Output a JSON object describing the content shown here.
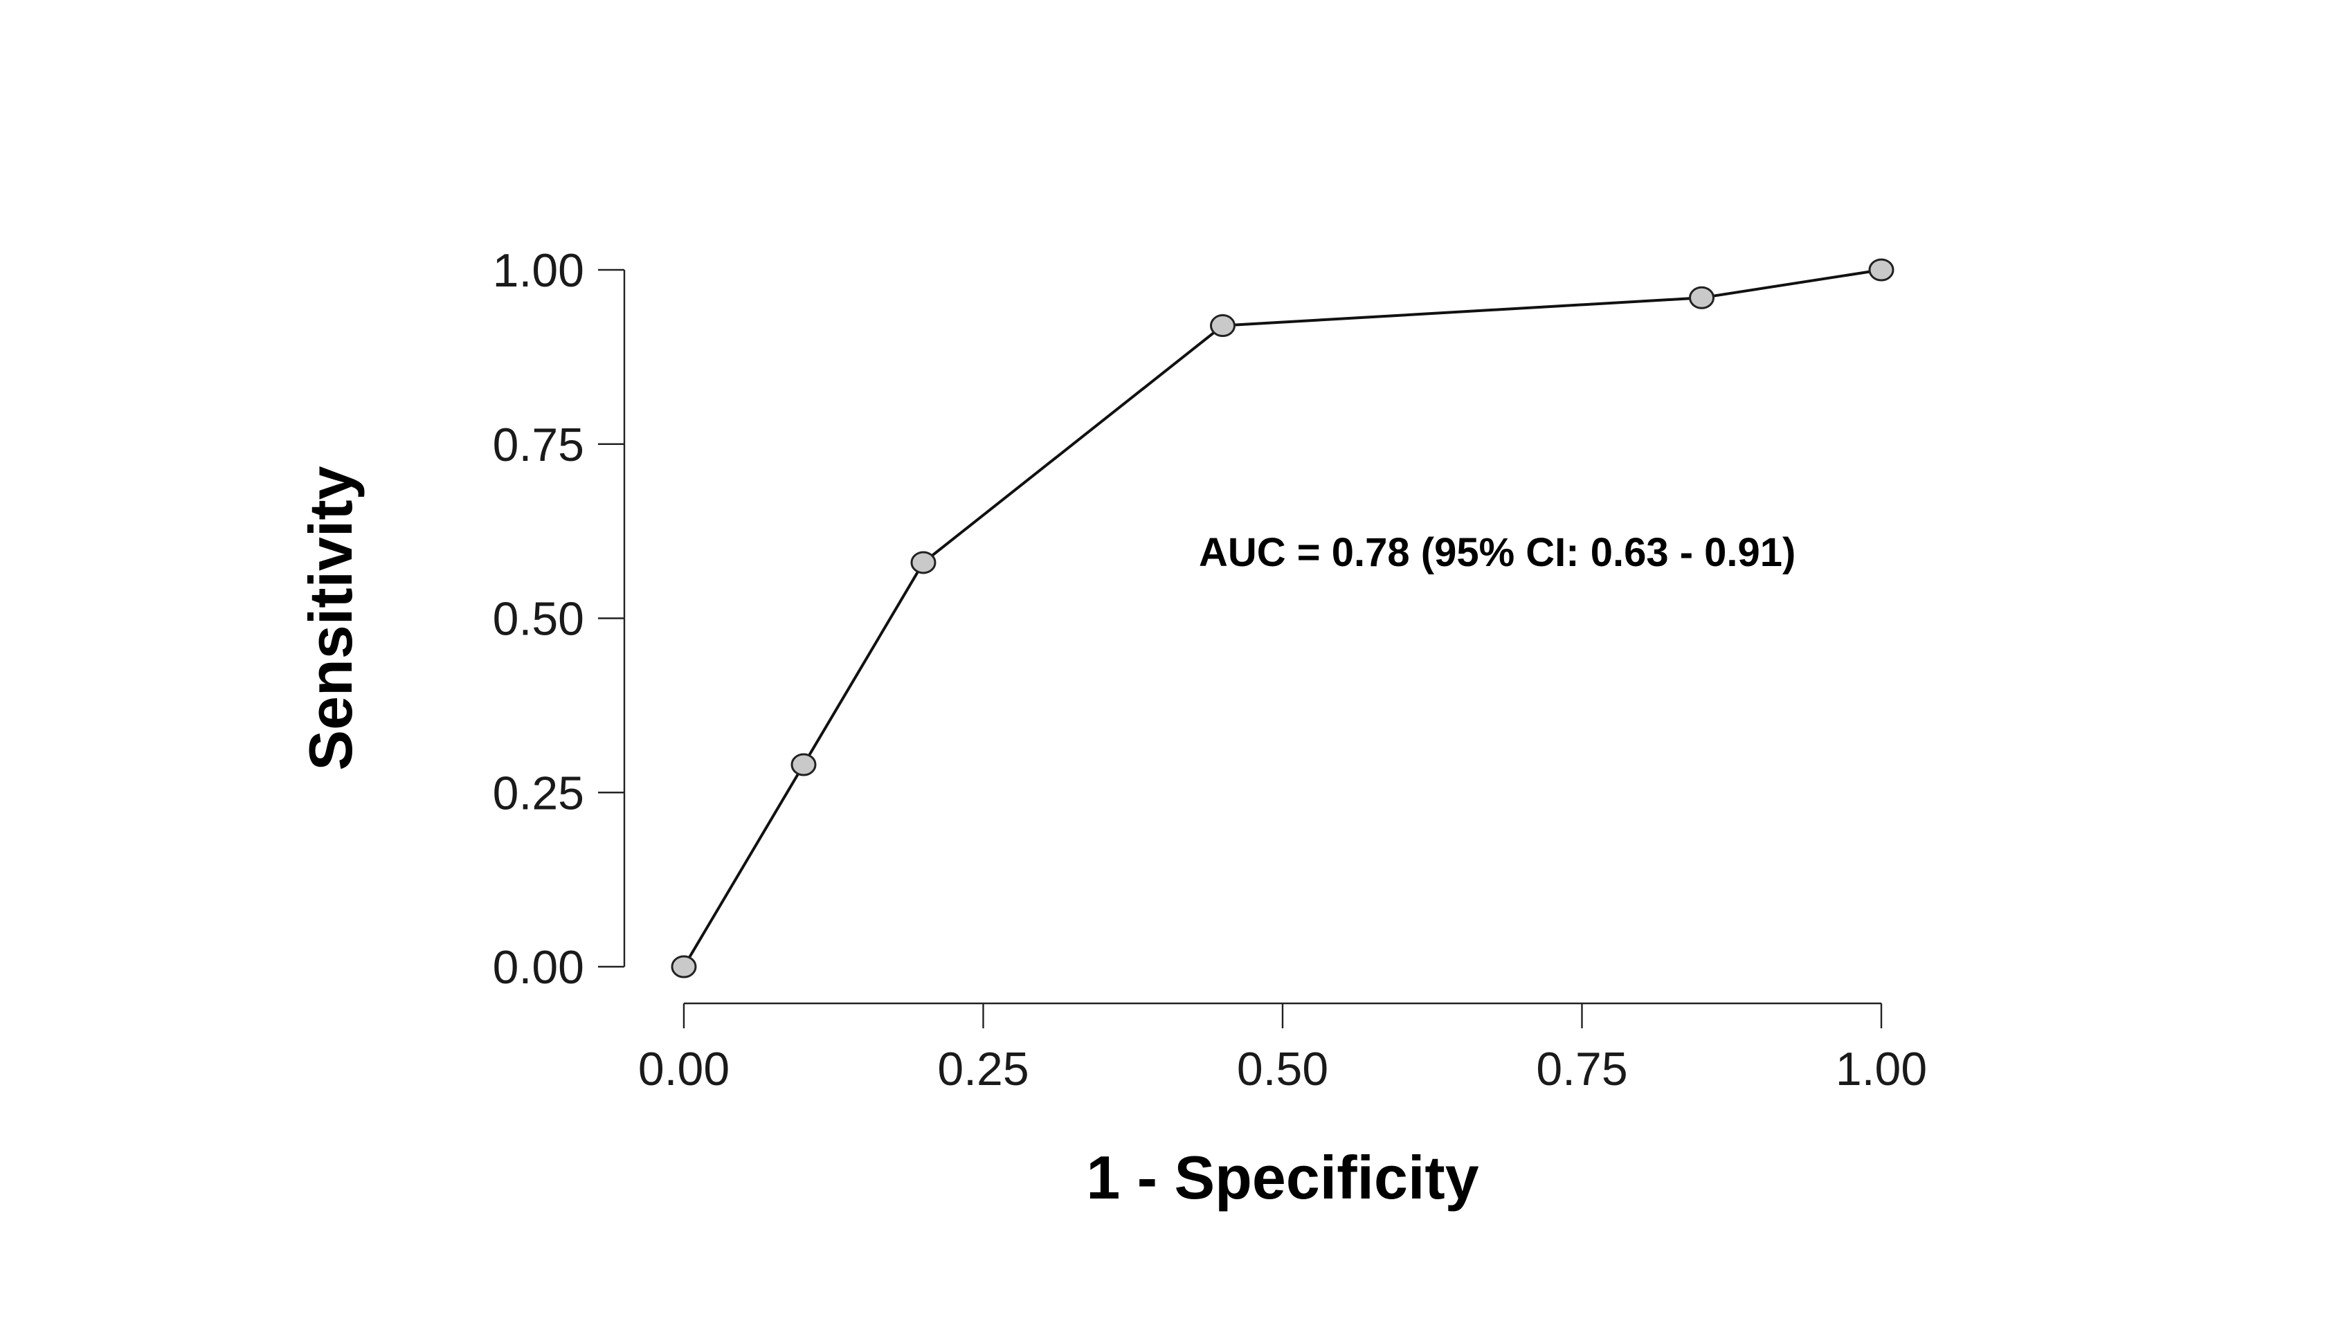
{
  "chart_data": {
    "type": "line",
    "title": "",
    "xlabel": "1 - Specificity",
    "ylabel": "Sensitivity",
    "xlim": [
      0,
      1
    ],
    "ylim": [
      0,
      1
    ],
    "grid": false,
    "x_ticks": [
      "0.00",
      "0.25",
      "0.50",
      "0.75",
      "1.00"
    ],
    "y_ticks": [
      "0.00",
      "0.25",
      "0.50",
      "0.75",
      "1.00"
    ],
    "annotation": "AUC = 0.78 (95% CI: 0.63 - 0.91)",
    "series": [
      {
        "x": [
          0.0,
          0.1,
          0.2,
          0.45,
          0.85,
          1.0
        ],
        "y": [
          0.0,
          0.29,
          0.58,
          0.92,
          0.96,
          1.0
        ]
      }
    ],
    "colors": {
      "line": "#111111",
      "marker_fill": "#c9c9c9",
      "marker_stroke": "#222222"
    }
  }
}
